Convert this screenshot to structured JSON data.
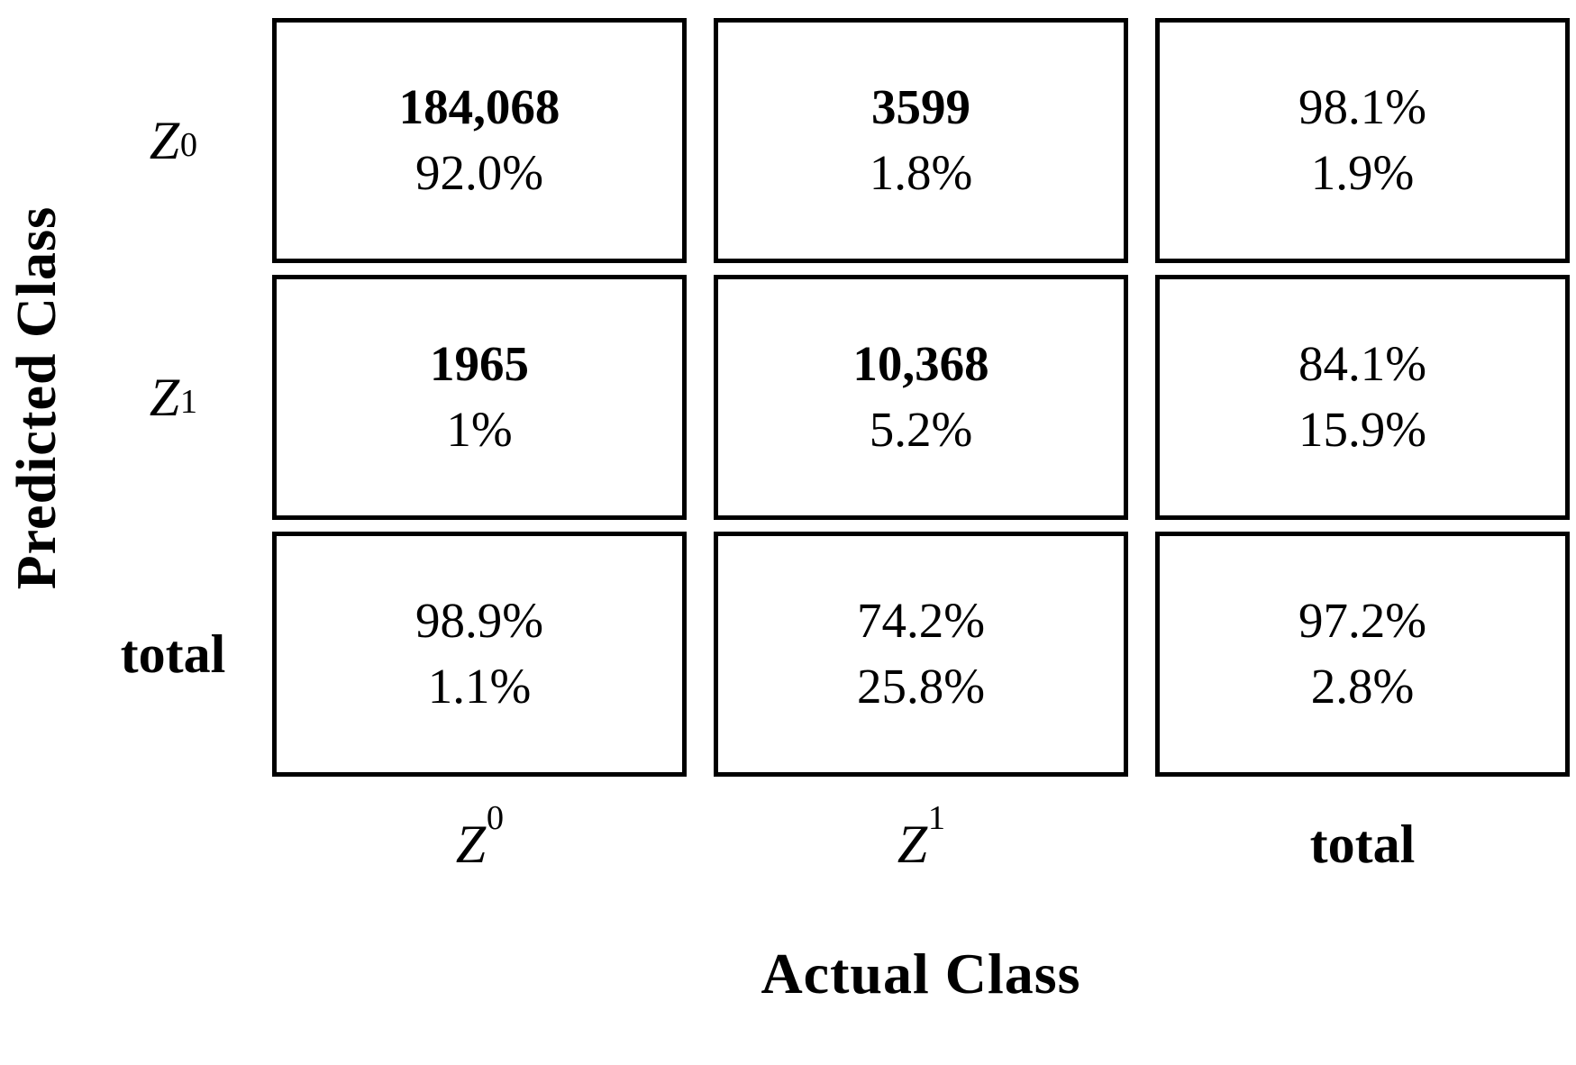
{
  "figure": {
    "y_axis_label": "Predicted Class",
    "x_axis_label": "Actual Class",
    "text_color": "#000000",
    "background_color": "#ffffff",
    "border_color": "#000000"
  },
  "matrix": {
    "row_labels": [
      {
        "text": "Z",
        "sub": "0",
        "style": "math"
      },
      {
        "text": "Z",
        "sub": "1",
        "style": "math"
      },
      {
        "text": "total",
        "sub": "",
        "style": "bold"
      }
    ],
    "col_labels": [
      {
        "text": "Z",
        "sub": "0",
        "style": "math"
      },
      {
        "text": "Z",
        "sub": "1",
        "style": "math"
      },
      {
        "text": "total",
        "sub": "",
        "style": "bold"
      }
    ],
    "cells": [
      [
        {
          "line1": "184,068",
          "w1": "bold",
          "line2": "92.0%"
        },
        {
          "line1": "3599",
          "w1": "bold",
          "line2": "1.8%"
        },
        {
          "line1": "98.1%",
          "w1": "normal",
          "line2": "1.9%"
        }
      ],
      [
        {
          "line1": "1965",
          "w1": "bold",
          "line2": "1%"
        },
        {
          "line1": "10,368",
          "w1": "bold",
          "line2": "5.2%"
        },
        {
          "line1": "84.1%",
          "w1": "normal",
          "line2": "15.9%"
        }
      ],
      [
        {
          "line1": "98.9%",
          "w1": "normal",
          "line2": "1.1%"
        },
        {
          "line1": "74.2%",
          "w1": "normal",
          "line2": "25.8%"
        },
        {
          "line1": "97.2%",
          "w1": "normal",
          "line2": "2.8%"
        }
      ]
    ]
  },
  "chart_data": {
    "type": "table",
    "title": "Confusion matrix: Predicted Class vs Actual Class",
    "xlabel": "Actual Class",
    "ylabel": "Predicted Class",
    "columns": [
      "Z0",
      "Z1",
      "total"
    ],
    "rows": [
      "Z0",
      "Z1",
      "total"
    ],
    "cells": [
      [
        [
          "184,068",
          "92.0%"
        ],
        [
          "3599",
          "1.8%"
        ],
        [
          "98.1%",
          "1.9%"
        ]
      ],
      [
        [
          "1965",
          "1%"
        ],
        [
          "10,368",
          "5.2%"
        ],
        [
          "84.1%",
          "15.9%"
        ]
      ],
      [
        [
          "98.9%",
          "1.1%"
        ],
        [
          "74.2%",
          "25.8%"
        ],
        [
          "97.2%",
          "2.8%"
        ]
      ]
    ],
    "counts": [
      [
        184068,
        3599
      ],
      [
        1965,
        10368
      ]
    ]
  }
}
